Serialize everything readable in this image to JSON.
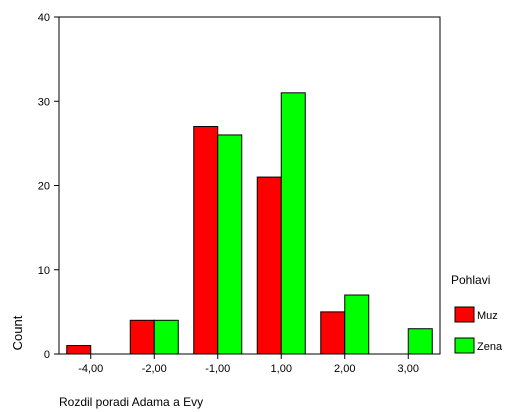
{
  "chart_data": {
    "type": "bar",
    "xlabel": "Rozdil poradi Adama a Evy",
    "ylabel": "Count",
    "categories": [
      "-4,00",
      "-2,00",
      "-1,00",
      "1,00",
      "2,00",
      "3,00"
    ],
    "ylim": [
      0,
      40
    ],
    "yticks": [
      0,
      10,
      20,
      30,
      40
    ],
    "grid": false,
    "legend_title": "Pohlavi",
    "legend_position": "right",
    "series": [
      {
        "name": "Muz",
        "color": "#ff0000",
        "values": [
          1,
          4,
          27,
          21,
          5,
          0
        ]
      },
      {
        "name": "Zena",
        "color": "#00ff00",
        "values": [
          0,
          4,
          26,
          31,
          7,
          3
        ]
      }
    ]
  }
}
